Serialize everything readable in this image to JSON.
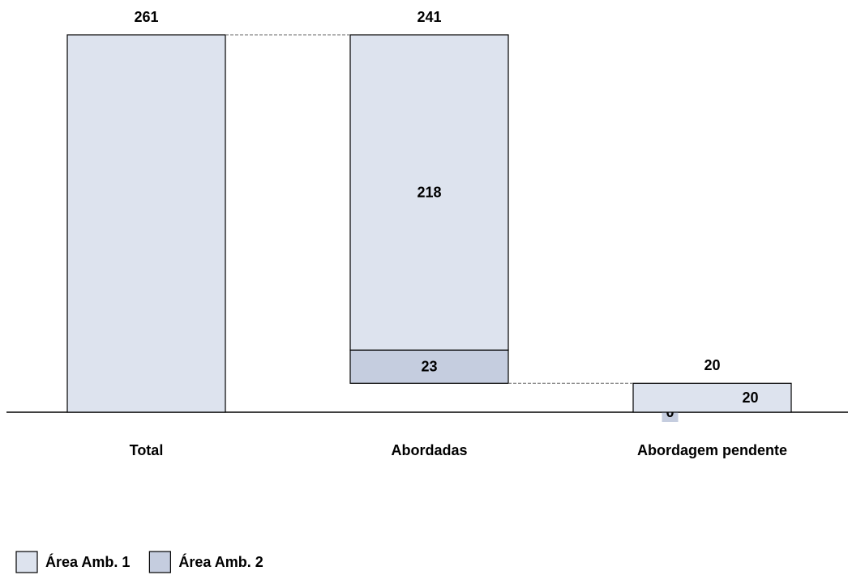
{
  "chart_data": {
    "type": "waterfall",
    "categories": [
      "Total",
      "Abordadas",
      "Abordagem pendente"
    ],
    "totals": [
      261,
      241,
      20
    ],
    "series": [
      {
        "name": "Área Amb. 1",
        "color": "#dde3ee",
        "values": [
          261,
          218,
          20
        ]
      },
      {
        "name": "Área Amb. 2",
        "color": "#c5cddf",
        "values": [
          null,
          23,
          0
        ]
      }
    ]
  }
}
